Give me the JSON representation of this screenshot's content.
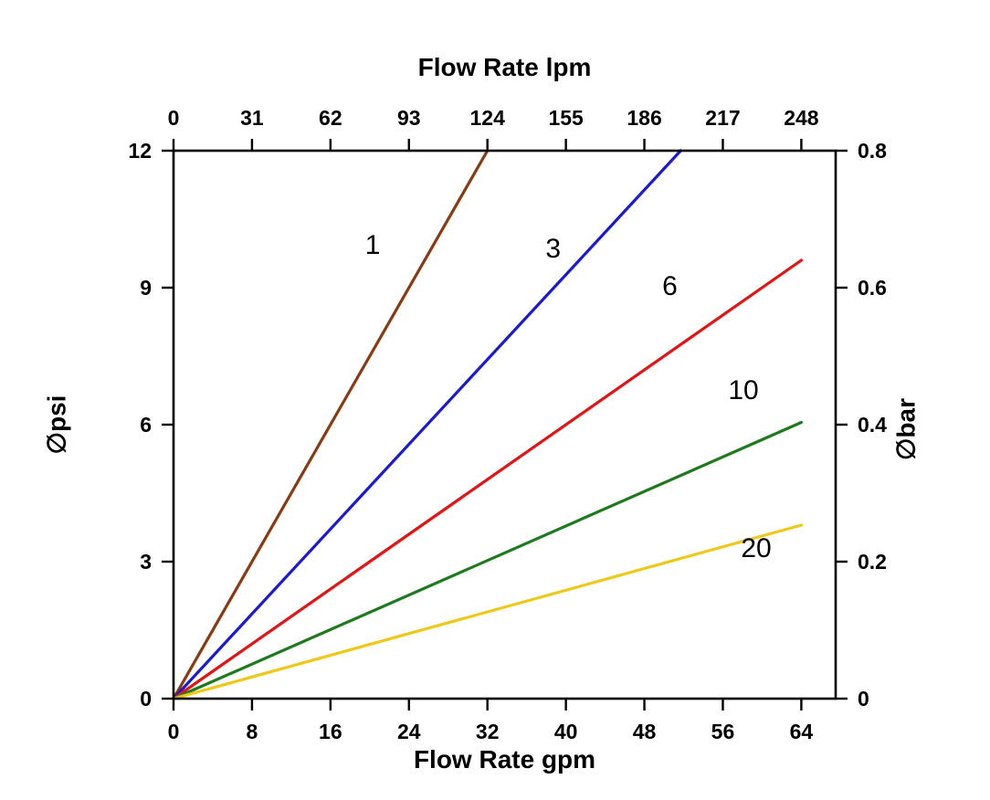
{
  "chart_data": {
    "type": "line",
    "title": "",
    "xlabel": "Flow Rate gpm",
    "x2label": "Flow Rate lpm",
    "ylabel": "∅psi",
    "y2label": "∅bar",
    "xlim": [
      0,
      67.5
    ],
    "ylim": [
      0,
      12
    ],
    "grid": false,
    "legend": "inline-curve-labels",
    "x_ticks_bottom": [
      "0",
      "8",
      "16",
      "24",
      "32",
      "40",
      "48",
      "56",
      "64"
    ],
    "x_ticks_top": [
      "0",
      "31",
      "62",
      "93",
      "124",
      "155",
      "186",
      "217",
      "248"
    ],
    "y_ticks_left": [
      "0",
      "3",
      "6",
      "9",
      "12"
    ],
    "y_ticks_right": [
      "0",
      "0.2",
      "0.4",
      "0.6",
      "0.8"
    ],
    "series": [
      {
        "name": "1",
        "color": "#8a3a12",
        "points": [
          [
            0,
            0
          ],
          [
            32,
            12
          ]
        ],
        "label": {
          "x": 20.3,
          "y": 9.74
        }
      },
      {
        "name": "3",
        "color": "#1a1ad6",
        "points": [
          [
            0,
            0
          ],
          [
            51.7,
            12
          ]
        ],
        "label": {
          "x": 38.7,
          "y": 9.66
        }
      },
      {
        "name": "6",
        "color": "#e41414",
        "points": [
          [
            0,
            0
          ],
          [
            64,
            9.6
          ]
        ],
        "label": {
          "x": 50.6,
          "y": 8.84
        }
      },
      {
        "name": "10",
        "color": "#1f7a1f",
        "points": [
          [
            0,
            0
          ],
          [
            64,
            6.05
          ]
        ],
        "label": {
          "x": 58.1,
          "y": 6.56
        }
      },
      {
        "name": "20",
        "color": "#eec919",
        "points": [
          [
            0,
            0
          ],
          [
            64,
            3.8
          ]
        ],
        "label": {
          "x": 59.4,
          "y": 3.1
        }
      }
    ]
  }
}
